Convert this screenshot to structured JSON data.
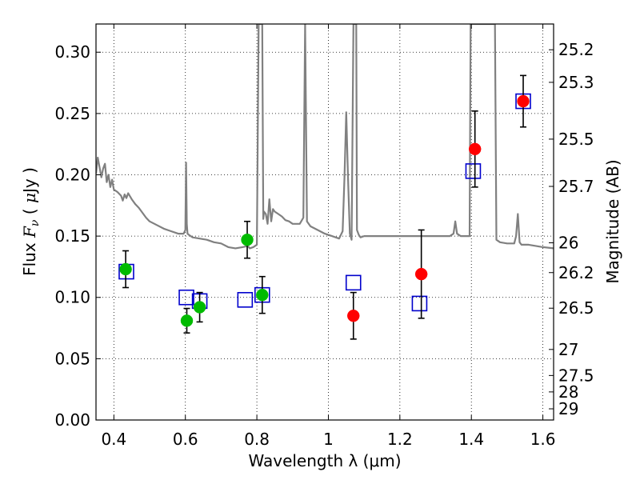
{
  "chart_data": {
    "type": "scatter",
    "xlabel": "Wavelength  λ (μm)",
    "ylabel_parts": [
      "Flux  ",
      "F",
      "ν",
      "  (  ",
      "μ",
      "Jy )"
    ],
    "y2label": "Magnitude (AB)",
    "xlim": [
      0.35,
      1.63
    ],
    "ylim": [
      0.0,
      0.323
    ],
    "grid": true,
    "x_ticks": [
      {
        "value": 0.4,
        "label": "0.4"
      },
      {
        "value": 0.6,
        "label": "0.6"
      },
      {
        "value": 0.8,
        "label": "0.8"
      },
      {
        "value": 1.0,
        "label": "1"
      },
      {
        "value": 1.2,
        "label": "1.2"
      },
      {
        "value": 1.4,
        "label": "1.4"
      },
      {
        "value": 1.6,
        "label": "1.6"
      }
    ],
    "y_ticks": [
      {
        "value": 0.0,
        "label": "0.00"
      },
      {
        "value": 0.05,
        "label": "0.05"
      },
      {
        "value": 0.1,
        "label": "0.10"
      },
      {
        "value": 0.15,
        "label": "0.15"
      },
      {
        "value": 0.2,
        "label": "0.20"
      },
      {
        "value": 0.25,
        "label": "0.25"
      },
      {
        "value": 0.3,
        "label": "0.30"
      }
    ],
    "y2_ticks": [
      {
        "mag": 25.2,
        "label": "25.2"
      },
      {
        "mag": 25.3,
        "label": "25.3"
      },
      {
        "mag": 25.5,
        "label": "25.5"
      },
      {
        "mag": 25.7,
        "label": "25.7"
      },
      {
        "mag": 26.0,
        "label": "26"
      },
      {
        "mag": 26.2,
        "label": "26.2"
      },
      {
        "mag": 26.5,
        "label": "26.5"
      },
      {
        "mag": 27.0,
        "label": "27"
      },
      {
        "mag": 27.5,
        "label": "27.5"
      },
      {
        "mag": 28.0,
        "label": "28"
      },
      {
        "mag": 29.0,
        "label": "29"
      }
    ],
    "series": [
      {
        "name": "model-spectrum",
        "kind": "line",
        "color": "#808080",
        "x": [
          0.35,
          0.355,
          0.36,
          0.365,
          0.37,
          0.375,
          0.38,
          0.385,
          0.39,
          0.395,
          0.4,
          0.41,
          0.42,
          0.425,
          0.43,
          0.435,
          0.44,
          0.45,
          0.46,
          0.47,
          0.48,
          0.49,
          0.5,
          0.52,
          0.54,
          0.56,
          0.58,
          0.595,
          0.6,
          0.602,
          0.604,
          0.606,
          0.61,
          0.62,
          0.64,
          0.66,
          0.68,
          0.7,
          0.72,
          0.74,
          0.76,
          0.775,
          0.78,
          0.79,
          0.8,
          0.805,
          0.808,
          0.81,
          0.812,
          0.815,
          0.818,
          0.82,
          0.825,
          0.83,
          0.835,
          0.84,
          0.845,
          0.85,
          0.86,
          0.87,
          0.88,
          0.89,
          0.9,
          0.92,
          0.93,
          0.935,
          0.94,
          0.95,
          0.97,
          0.99,
          1.01,
          1.03,
          1.04,
          1.045,
          1.05,
          1.055,
          1.06,
          1.065,
          1.07,
          1.075,
          1.078,
          1.08,
          1.085,
          1.09,
          1.1,
          1.15,
          1.2,
          1.25,
          1.3,
          1.34,
          1.35,
          1.355,
          1.36,
          1.37,
          1.38,
          1.39,
          1.395,
          1.398,
          1.4,
          1.402,
          1.405,
          1.41,
          1.42,
          1.43,
          1.44,
          1.45,
          1.455,
          1.46,
          1.463,
          1.466,
          1.47,
          1.48,
          1.5,
          1.52,
          1.525,
          1.53,
          1.535,
          1.54,
          1.56,
          1.58,
          1.6,
          1.63
        ],
        "y": [
          0.201,
          0.214,
          0.206,
          0.198,
          0.205,
          0.209,
          0.194,
          0.2,
          0.19,
          0.196,
          0.188,
          0.186,
          0.183,
          0.179,
          0.184,
          0.181,
          0.185,
          0.18,
          0.176,
          0.173,
          0.169,
          0.165,
          0.162,
          0.159,
          0.156,
          0.154,
          0.152,
          0.152,
          0.155,
          0.21,
          0.16,
          0.152,
          0.151,
          0.149,
          0.148,
          0.147,
          0.145,
          0.144,
          0.141,
          0.14,
          0.141,
          0.142,
          0.14,
          0.141,
          0.143,
          0.323,
          0.323,
          0.323,
          0.323,
          0.323,
          0.164,
          0.17,
          0.168,
          0.16,
          0.18,
          0.162,
          0.172,
          0.17,
          0.168,
          0.166,
          0.163,
          0.162,
          0.16,
          0.16,
          0.165,
          0.323,
          0.162,
          0.158,
          0.155,
          0.152,
          0.15,
          0.148,
          0.154,
          0.198,
          0.251,
          0.198,
          0.152,
          0.147,
          0.323,
          0.323,
          0.323,
          0.155,
          0.151,
          0.149,
          0.15,
          0.15,
          0.15,
          0.15,
          0.15,
          0.15,
          0.152,
          0.162,
          0.152,
          0.15,
          0.15,
          0.15,
          0.15,
          0.323,
          0.323,
          0.323,
          0.323,
          0.323,
          0.323,
          0.323,
          0.323,
          0.323,
          0.323,
          0.323,
          0.323,
          0.323,
          0.147,
          0.145,
          0.144,
          0.144,
          0.15,
          0.168,
          0.145,
          0.143,
          0.143,
          0.142,
          0.141,
          0.14
        ]
      },
      {
        "name": "green-points",
        "kind": "points",
        "color": "#00bb00",
        "points": [
          {
            "x": 0.433,
            "y": 0.123,
            "yerr": 0.015
          },
          {
            "x": 0.604,
            "y": 0.081,
            "yerr": 0.01
          },
          {
            "x": 0.64,
            "y": 0.092,
            "yerr": 0.012
          },
          {
            "x": 0.773,
            "y": 0.147,
            "yerr": 0.015
          },
          {
            "x": 0.815,
            "y": 0.102,
            "yerr": 0.015
          }
        ]
      },
      {
        "name": "red-points",
        "kind": "points",
        "color": "#ff0000",
        "points": [
          {
            "x": 1.07,
            "y": 0.085,
            "yerr": 0.019
          },
          {
            "x": 1.26,
            "y": 0.119,
            "yerr": 0.036
          },
          {
            "x": 1.41,
            "y": 0.221,
            "yerr": 0.031
          },
          {
            "x": 1.545,
            "y": 0.26,
            "yerr": 0.021
          }
        ]
      },
      {
        "name": "blue-squares",
        "kind": "squares",
        "color": "#0000cc",
        "points": [
          {
            "x": 0.435,
            "y": 0.121
          },
          {
            "x": 0.603,
            "y": 0.1
          },
          {
            "x": 0.64,
            "y": 0.097
          },
          {
            "x": 0.767,
            "y": 0.098
          },
          {
            "x": 0.815,
            "y": 0.102
          },
          {
            "x": 1.07,
            "y": 0.112
          },
          {
            "x": 1.255,
            "y": 0.095
          },
          {
            "x": 1.405,
            "y": 0.203
          },
          {
            "x": 1.545,
            "y": 0.26
          }
        ]
      }
    ]
  }
}
